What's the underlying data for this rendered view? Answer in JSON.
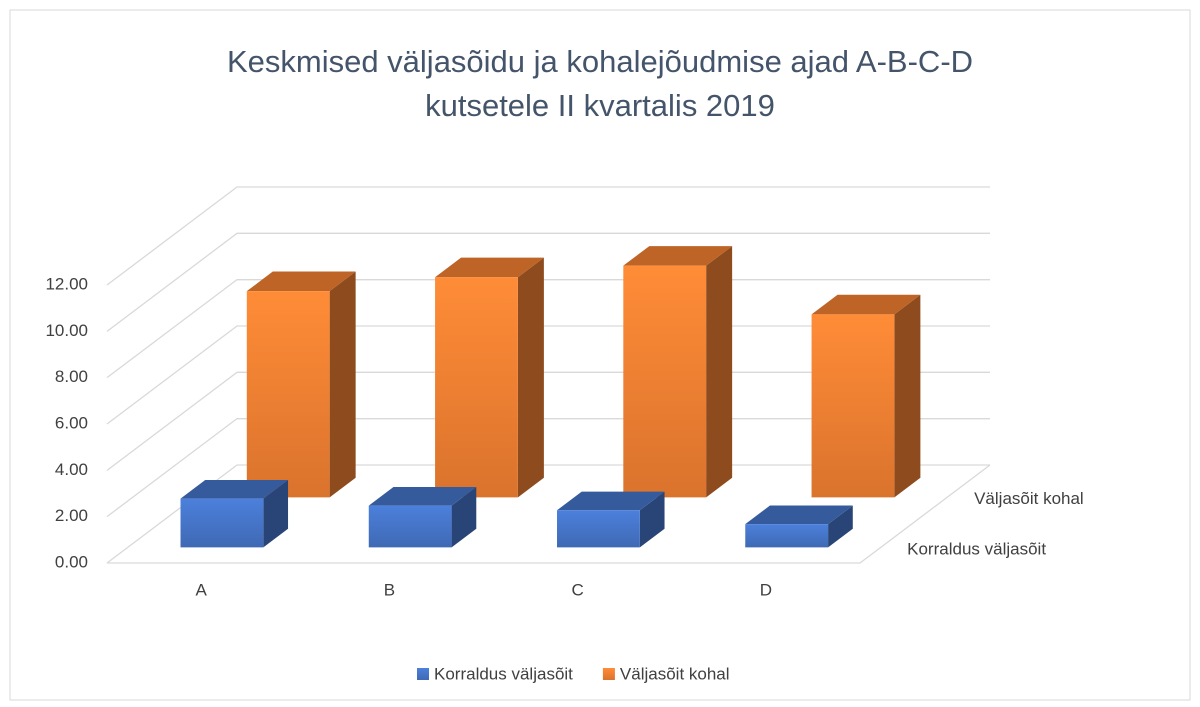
{
  "chart_data": {
    "type": "bar3d",
    "title": "Keskmised väljasõidu ja kohalejõudmise ajad A-B-C-D kutsetele II kvartalis 2019",
    "categories": [
      "A",
      "B",
      "C",
      "D"
    ],
    "series": [
      {
        "name": "Korraldus väljasõit",
        "color": "#4472c4",
        "values": [
          2.1,
          1.8,
          1.6,
          1.0
        ]
      },
      {
        "name": "Väljasõit kohal",
        "color": "#ed7d31",
        "values": [
          8.9,
          9.5,
          10.0,
          7.9
        ]
      }
    ],
    "ylim": [
      0,
      12
    ],
    "yticks": [
      {
        "value": 0,
        "label": "0.00"
      },
      {
        "value": 2,
        "label": "2.00"
      },
      {
        "value": 4,
        "label": "4.00"
      },
      {
        "value": 6,
        "label": "6.00"
      },
      {
        "value": 8,
        "label": "8.00"
      },
      {
        "value": 10,
        "label": "10.00"
      },
      {
        "value": 12,
        "label": "12.00"
      }
    ],
    "grid": true,
    "legend": "bottom"
  }
}
